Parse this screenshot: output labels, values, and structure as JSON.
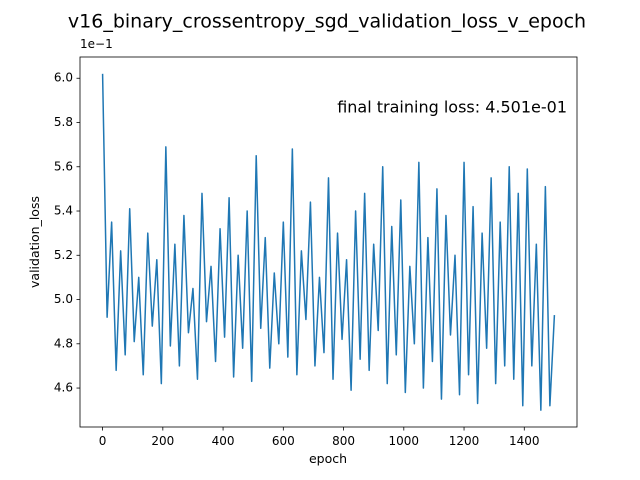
{
  "chart_data": {
    "type": "line",
    "title": "v16_binary_crossentropy_sgd_validation_loss_v_epoch",
    "x_label": "epoch",
    "y_label": "validation_loss",
    "y_offset_label": "1e−1",
    "annotation": "final training loss: 4.501e-01",
    "xlim": [
      -75,
      1575
    ],
    "ylim": [
      4.424,
      6.096
    ],
    "xticks": [
      0,
      200,
      400,
      600,
      800,
      1000,
      1200,
      1400
    ],
    "yticks": [
      4.6,
      4.8,
      {
        "value": 5,
        "label": "5.0"
      },
      5.2,
      5.4,
      5.6,
      5.8,
      {
        "value": 6,
        "label": "6.0"
      }
    ],
    "x": [
      0,
      15,
      30,
      45,
      60,
      75,
      90,
      105,
      120,
      135,
      150,
      165,
      180,
      195,
      210,
      225,
      240,
      255,
      270,
      285,
      300,
      315,
      330,
      345,
      360,
      375,
      390,
      405,
      420,
      435,
      450,
      465,
      480,
      495,
      510,
      525,
      540,
      555,
      570,
      585,
      600,
      615,
      630,
      645,
      660,
      675,
      690,
      705,
      720,
      735,
      750,
      765,
      780,
      795,
      810,
      825,
      840,
      855,
      870,
      885,
      900,
      915,
      930,
      945,
      960,
      975,
      990,
      1005,
      1020,
      1035,
      1050,
      1065,
      1080,
      1095,
      1110,
      1125,
      1140,
      1155,
      1170,
      1185,
      1200,
      1215,
      1230,
      1245,
      1260,
      1275,
      1290,
      1305,
      1320,
      1335,
      1350,
      1365,
      1380,
      1395,
      1410,
      1425,
      1440,
      1455,
      1470,
      1485,
      1500
    ],
    "series": [
      {
        "color": "#1f77b4",
        "values": [
          6.02,
          4.92,
          5.35,
          4.68,
          5.22,
          4.75,
          5.41,
          4.81,
          5.1,
          4.66,
          5.3,
          4.88,
          5.18,
          4.62,
          5.69,
          4.79,
          5.25,
          4.7,
          5.38,
          4.85,
          5.05,
          4.64,
          5.48,
          4.9,
          5.15,
          4.72,
          5.32,
          4.83,
          5.46,
          4.65,
          5.2,
          4.78,
          5.4,
          4.63,
          5.65,
          4.87,
          5.28,
          4.69,
          5.12,
          4.8,
          5.35,
          4.74,
          5.68,
          4.66,
          5.22,
          4.91,
          5.44,
          4.7,
          5.1,
          4.76,
          5.55,
          4.64,
          5.3,
          4.82,
          5.18,
          4.59,
          5.4,
          4.73,
          5.48,
          4.68,
          5.25,
          4.86,
          5.6,
          4.62,
          5.33,
          4.75,
          5.45,
          4.58,
          5.15,
          4.8,
          5.62,
          4.6,
          5.28,
          4.72,
          5.5,
          4.55,
          5.38,
          4.84,
          5.2,
          4.57,
          5.62,
          4.66,
          5.42,
          4.53,
          5.3,
          4.78,
          5.55,
          4.62,
          5.35,
          4.7,
          5.6,
          4.64,
          5.48,
          4.52,
          5.59,
          4.7,
          5.25,
          4.5,
          5.51,
          4.52,
          4.93
        ]
      }
    ]
  }
}
